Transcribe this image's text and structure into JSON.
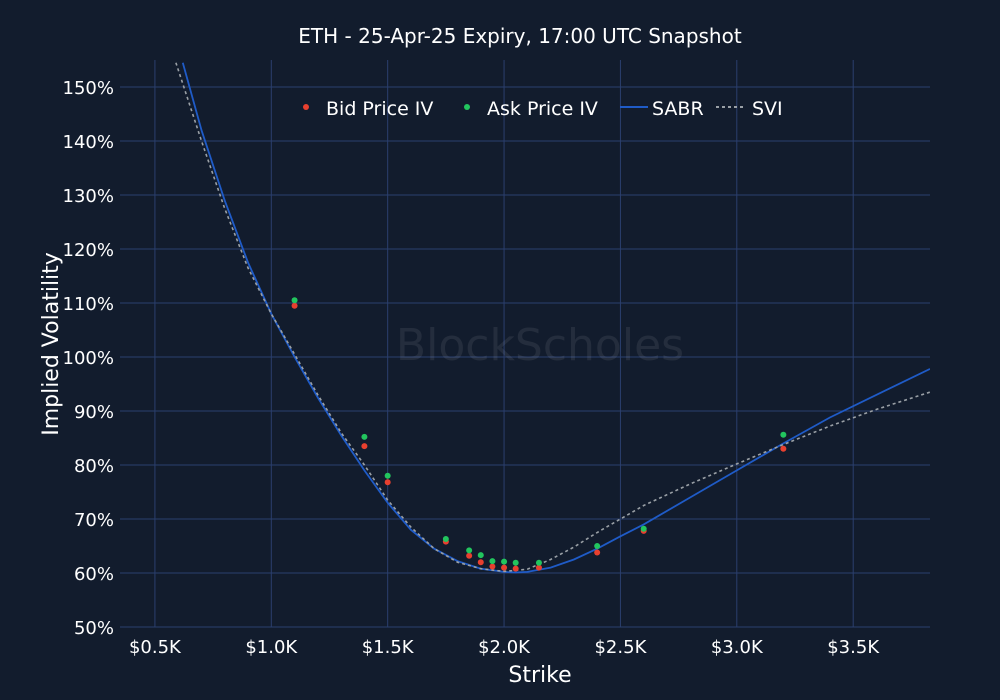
{
  "chart_data": {
    "type": "line",
    "title": "ETH - 25-Apr-25 Expiry, 17:00 UTC Snapshot",
    "xlabel": "Strike",
    "ylabel": "Implied Volatility",
    "xlim": [
      350,
      3830
    ],
    "ylim": [
      50,
      155
    ],
    "x_ticks": [
      500,
      1000,
      1500,
      2000,
      2500,
      3000,
      3500
    ],
    "x_tick_labels": [
      "$0.5K",
      "$1.0K",
      "$1.5K",
      "$2.0K",
      "$2.5K",
      "$3.0K",
      "$3.5K"
    ],
    "y_ticks": [
      50,
      60,
      70,
      80,
      90,
      100,
      110,
      120,
      130,
      140,
      150
    ],
    "y_tick_labels": [
      "50%",
      "60%",
      "70%",
      "80%",
      "90%",
      "100%",
      "110%",
      "120%",
      "130%",
      "140%",
      "150%"
    ],
    "grid": true,
    "legend_position": "top",
    "watermark": "BlockScholes",
    "series": [
      {
        "name": "Bid Price IV",
        "kind": "scatter",
        "color": "#e8402f",
        "x": [
          1100,
          1400,
          1500,
          1750,
          1850,
          1900,
          1950,
          2000,
          2050,
          2150,
          2400,
          2600,
          3200
        ],
        "y": [
          109.5,
          83.5,
          76.8,
          65.8,
          63.2,
          62.0,
          61.2,
          61.0,
          60.8,
          61.0,
          63.8,
          67.8,
          83.0
        ]
      },
      {
        "name": "Ask Price IV",
        "kind": "scatter",
        "color": "#22c55e",
        "x": [
          1100,
          1400,
          1500,
          1750,
          1850,
          1900,
          1950,
          2000,
          2050,
          2150,
          2400,
          2600,
          3200
        ],
        "y": [
          110.5,
          85.2,
          78.0,
          66.3,
          64.2,
          63.3,
          62.2,
          62.1,
          61.9,
          61.9,
          65.0,
          68.2,
          85.6
        ]
      },
      {
        "name": "SABR",
        "kind": "line",
        "color": "#1f5bc7",
        "x": [
          620,
          700,
          800,
          900,
          1000,
          1100,
          1200,
          1300,
          1400,
          1500,
          1600,
          1700,
          1800,
          1900,
          2000,
          2050,
          2100,
          2200,
          2300,
          2400,
          2500,
          2600,
          2800,
          3000,
          3200,
          3400,
          3600,
          3830
        ],
        "y": [
          154.5,
          142,
          129,
          117.5,
          108,
          100,
          92.5,
          85.5,
          79,
          73,
          68,
          64.5,
          62.2,
          60.8,
          60.2,
          60.1,
          60.2,
          61.0,
          62.5,
          64.5,
          66.8,
          69.0,
          74.0,
          79.0,
          84.0,
          88.8,
          93.0,
          97.8
        ]
      },
      {
        "name": "SVI",
        "kind": "line",
        "dash": true,
        "color": "#9aa0a6",
        "x": [
          590,
          700,
          800,
          900,
          1000,
          1100,
          1200,
          1300,
          1400,
          1500,
          1600,
          1700,
          1800,
          1900,
          2000,
          2100,
          2200,
          2300,
          2400,
          2500,
          2600,
          2800,
          3000,
          3200,
          3400,
          3600,
          3830
        ],
        "y": [
          154.5,
          140,
          127.5,
          116.5,
          108,
          100.5,
          93,
          86,
          80,
          73.5,
          68.5,
          64.5,
          62.0,
          60.8,
          60.3,
          60.7,
          62.5,
          64.8,
          67.5,
          70.0,
          72.5,
          76.5,
          80.2,
          83.8,
          87.2,
          90.3,
          93.5
        ]
      }
    ]
  }
}
